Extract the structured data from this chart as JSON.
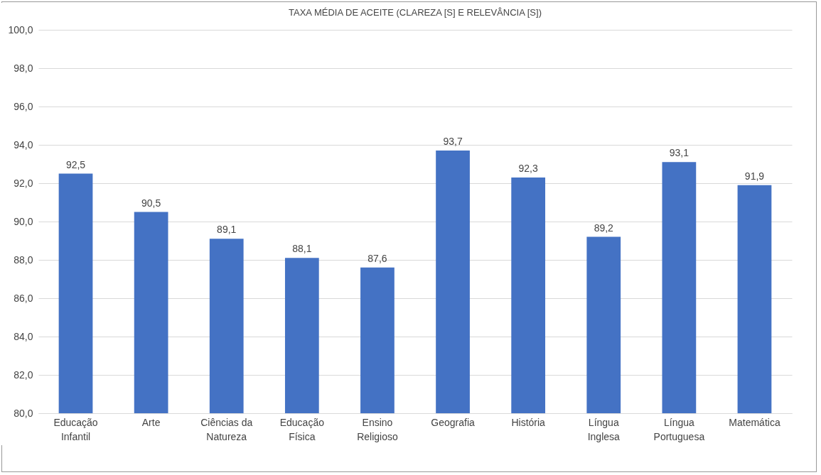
{
  "chart_data": {
    "type": "bar",
    "title": "TAXA MÉDIA DE ACEITE (CLAREZA [S] E RELEVÂNCIA [S])",
    "categories": [
      "Educação Infantil",
      "Arte",
      "Ciências da Natureza",
      "Educação Física",
      "Ensino Religioso",
      "Geografia",
      "História",
      "Língua Inglesa",
      "Língua Portuguesa",
      "Matemática"
    ],
    "values": [
      92.5,
      90.5,
      89.1,
      88.1,
      87.6,
      93.7,
      92.3,
      89.2,
      93.1,
      91.9
    ],
    "value_labels": [
      "92,5",
      "90,5",
      "89,1",
      "88,1",
      "87,6",
      "93,7",
      "92,3",
      "89,2",
      "93,1",
      "91,9"
    ],
    "color": "#4472c4",
    "ylim": [
      80,
      100
    ],
    "yticks": [
      {
        "value": 80,
        "label": "80,0"
      },
      {
        "value": 82,
        "label": "82,0"
      },
      {
        "value": 84,
        "label": "84,0"
      },
      {
        "value": 86,
        "label": "86,0"
      },
      {
        "value": 88,
        "label": "88,0"
      },
      {
        "value": 90,
        "label": "90,0"
      },
      {
        "value": 92,
        "label": "92,0"
      },
      {
        "value": 94,
        "label": "94,0"
      },
      {
        "value": 96,
        "label": "96,0"
      },
      {
        "value": 98,
        "label": "98,0"
      },
      {
        "value": 100,
        "label": "100,0"
      }
    ],
    "grid": "y"
  }
}
